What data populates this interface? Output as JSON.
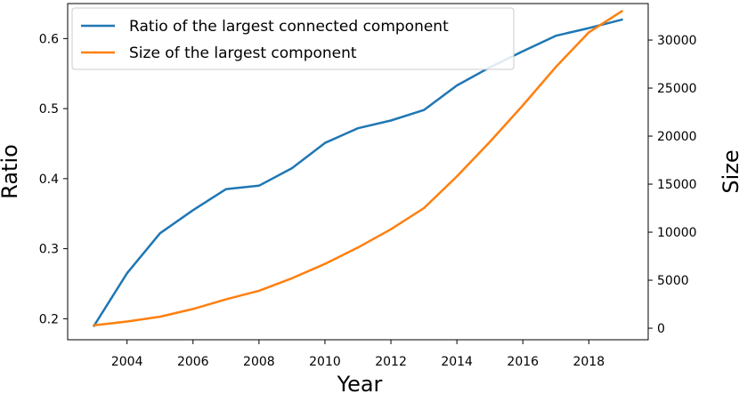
{
  "chart_data": {
    "type": "line",
    "xlabel": "Year",
    "ylabel_left": "Ratio",
    "ylabel_right": "Size",
    "xlim": [
      2002.2,
      2019.8
    ],
    "ylim_left": [
      0.17,
      0.65
    ],
    "ylim_right": [
      -1200,
      33800
    ],
    "xticks": [
      2004,
      2006,
      2008,
      2010,
      2012,
      2014,
      2016,
      2018
    ],
    "yticks_left": [
      0.2,
      0.3,
      0.4,
      0.5,
      0.6
    ],
    "yticks_right": [
      0,
      5000,
      10000,
      15000,
      20000,
      25000,
      30000
    ],
    "grid": false,
    "legend_position": "top-left",
    "x": [
      2003,
      2004,
      2005,
      2006,
      2007,
      2008,
      2009,
      2010,
      2011,
      2012,
      2013,
      2014,
      2015,
      2016,
      2017,
      2018,
      2019
    ],
    "series": [
      {
        "name": "Ratio of the largest connected component",
        "axis": "left",
        "color": "#1f77b4",
        "values": [
          0.19,
          0.265,
          0.322,
          0.355,
          0.385,
          0.39,
          0.415,
          0.451,
          0.472,
          0.483,
          0.498,
          0.533,
          0.559,
          0.582,
          0.604,
          0.615,
          0.627
        ]
      },
      {
        "name": "Size of the largest component",
        "axis": "right",
        "color": "#ff7f0e",
        "values": [
          300,
          700,
          1200,
          2000,
          3000,
          3900,
          5200,
          6700,
          8400,
          10300,
          12500,
          15800,
          19400,
          23200,
          27200,
          30800,
          33000
        ]
      }
    ]
  }
}
